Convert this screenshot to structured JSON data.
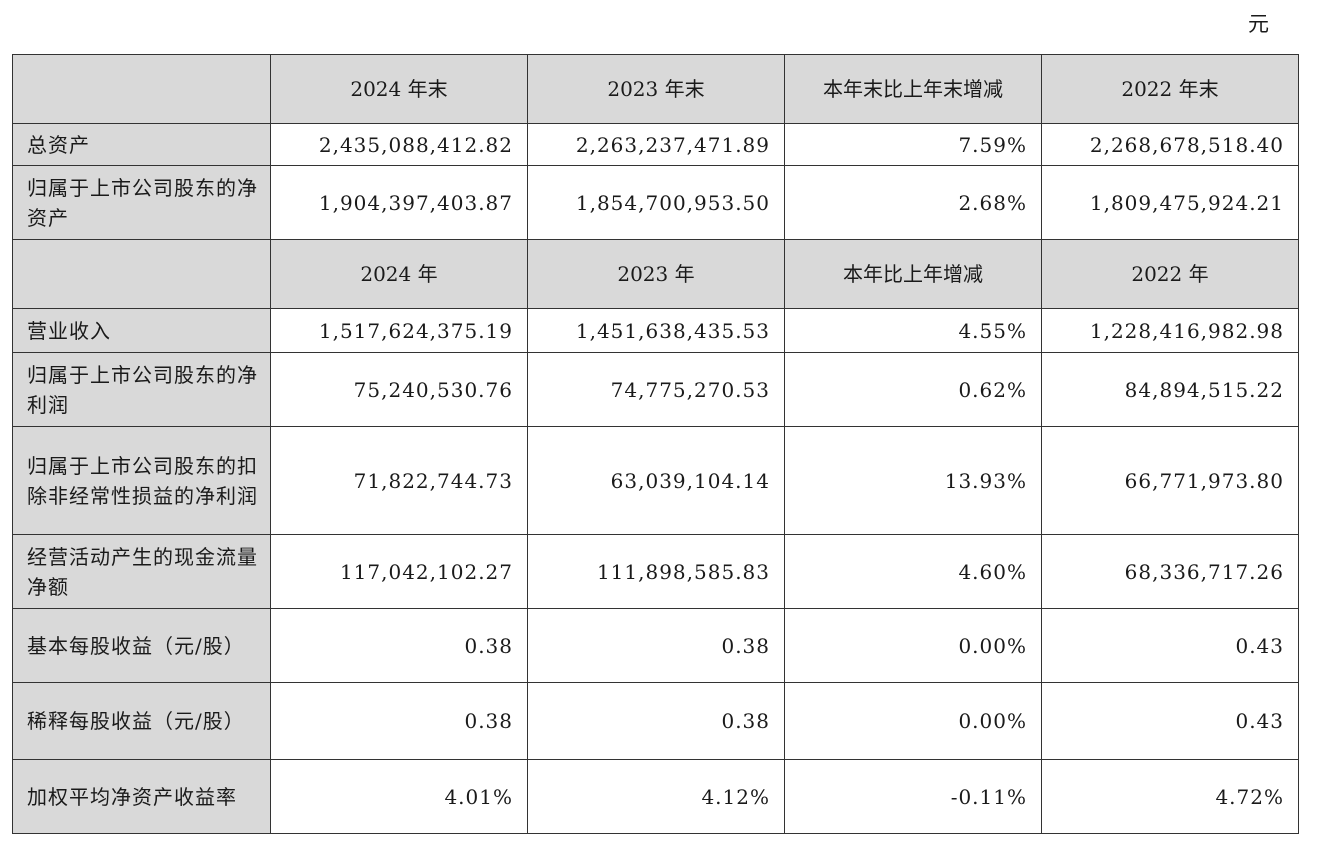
{
  "unit": "元",
  "table": {
    "header_1": [
      "",
      "2024 年末",
      "2023 年末",
      "本年末比上年末增减",
      "2022 年末"
    ],
    "header_2": [
      "",
      "2024 年",
      "2023 年",
      "本年比上年增减",
      "2022 年"
    ],
    "rows": [
      {
        "label": "总资产",
        "values": [
          "2,435,088,412.82",
          "2,263,237,471.89",
          "7.59%",
          "2,268,678,518.40"
        ]
      },
      {
        "label": "归属于上市公司股东的净资产",
        "values": [
          "1,904,397,403.87",
          "1,854,700,953.50",
          "2.68%",
          "1,809,475,924.21"
        ]
      },
      {
        "label": "营业收入",
        "values": [
          "1,517,624,375.19",
          "1,451,638,435.53",
          "4.55%",
          "1,228,416,982.98"
        ]
      },
      {
        "label": "归属于上市公司股东的净利润",
        "values": [
          "75,240,530.76",
          "74,775,270.53",
          "0.62%",
          "84,894,515.22"
        ]
      },
      {
        "label": "归属于上市公司股东的扣除非经常性损益的净利润",
        "values": [
          "71,822,744.73",
          "63,039,104.14",
          "13.93%",
          "66,771,973.80"
        ]
      },
      {
        "label": "经营活动产生的现金流量净额",
        "values": [
          "117,042,102.27",
          "111,898,585.83",
          "4.60%",
          "68,336,717.26"
        ]
      },
      {
        "label": "基本每股收益（元/股）",
        "values": [
          "0.38",
          "0.38",
          "0.00%",
          "0.43"
        ]
      },
      {
        "label": "稀释每股收益（元/股）",
        "values": [
          "0.38",
          "0.38",
          "0.00%",
          "0.43"
        ]
      },
      {
        "label": "加权平均净资产收益率",
        "values": [
          "4.01%",
          "4.12%",
          "-0.11%",
          "4.72%"
        ]
      }
    ]
  }
}
